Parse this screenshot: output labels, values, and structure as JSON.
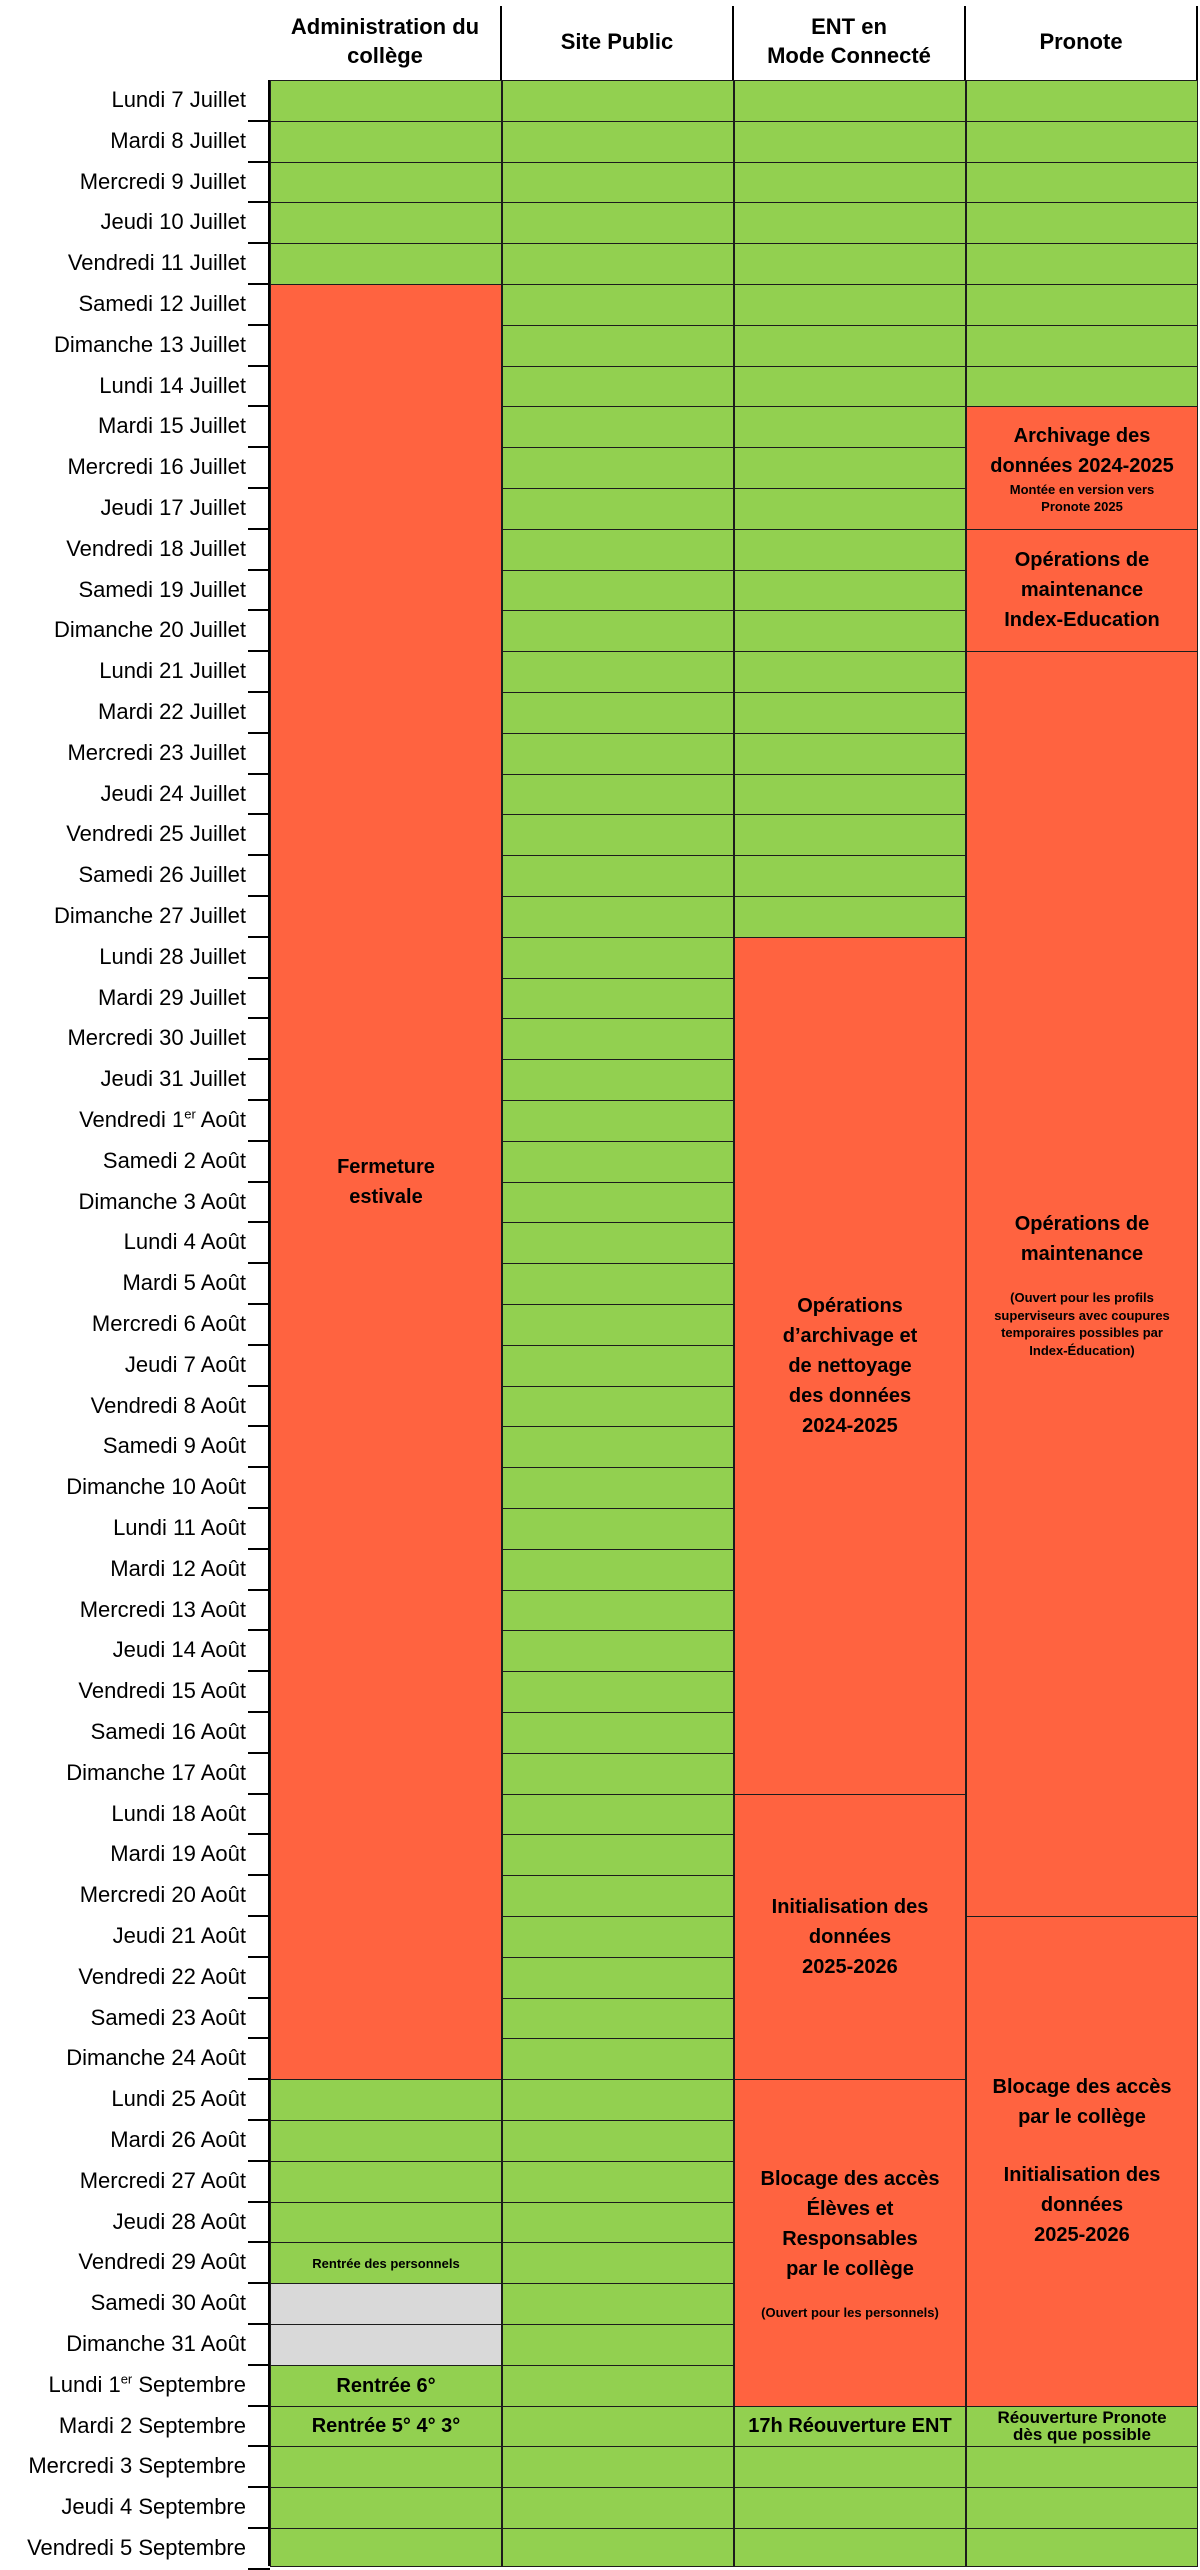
{
  "headers": {
    "admin": "Administration du\ncollège",
    "site": "Site Public",
    "ent": "ENT en\nMode Connecté",
    "pronote": "Pronote"
  },
  "days": [
    {
      "text": "Lundi 7 Juillet"
    },
    {
      "text": "Mardi 8 Juillet"
    },
    {
      "text": "Mercredi 9 Juillet"
    },
    {
      "text": "Jeudi 10 Juillet"
    },
    {
      "text": "Vendredi 11 Juillet"
    },
    {
      "text": "Samedi 12 Juillet"
    },
    {
      "text": "Dimanche 13 Juillet"
    },
    {
      "text": "Lundi 14 Juillet"
    },
    {
      "text": "Mardi 15 Juillet"
    },
    {
      "text": "Mercredi 16 Juillet"
    },
    {
      "text": "Jeudi 17 Juillet"
    },
    {
      "text": "Vendredi 18 Juillet"
    },
    {
      "text": "Samedi 19 Juillet"
    },
    {
      "text": "Dimanche 20 Juillet"
    },
    {
      "text": "Lundi 21 Juillet"
    },
    {
      "text": "Mardi 22 Juillet"
    },
    {
      "text": "Mercredi 23 Juillet"
    },
    {
      "text": "Jeudi 24 Juillet"
    },
    {
      "text": "Vendredi 25 Juillet"
    },
    {
      "text": "Samedi 26 Juillet"
    },
    {
      "text": "Dimanche 27 Juillet"
    },
    {
      "text": "Lundi 28 Juillet"
    },
    {
      "text": "Mardi 29 Juillet"
    },
    {
      "text": "Mercredi 30 Juillet"
    },
    {
      "text": "Jeudi 31 Juillet"
    },
    {
      "pre": "Vendredi 1",
      "sup": "er",
      "post": " Août"
    },
    {
      "text": "Samedi 2 Août"
    },
    {
      "text": "Dimanche 3 Août"
    },
    {
      "text": "Lundi 4 Août"
    },
    {
      "text": "Mardi 5 Août"
    },
    {
      "text": "Mercredi 6 Août"
    },
    {
      "text": "Jeudi 7 Août"
    },
    {
      "text": "Vendredi 8 Août"
    },
    {
      "text": "Samedi 9 Août"
    },
    {
      "text": "Dimanche 10 Août"
    },
    {
      "text": "Lundi 11 Août"
    },
    {
      "text": "Mardi 12 Août"
    },
    {
      "text": "Mercredi 13 Août"
    },
    {
      "text": "Jeudi 14 Août"
    },
    {
      "text": "Vendredi 15 Août"
    },
    {
      "text": "Samedi 16 Août"
    },
    {
      "text": "Dimanche 17 Août"
    },
    {
      "text": "Lundi 18 Août"
    },
    {
      "text": "Mardi 19 Août"
    },
    {
      "text": "Mercredi 20 Août"
    },
    {
      "text": "Jeudi 21 Août"
    },
    {
      "text": "Vendredi 22 Août"
    },
    {
      "text": "Samedi 23 Août"
    },
    {
      "text": "Dimanche 24 Août"
    },
    {
      "text": "Lundi 25 Août"
    },
    {
      "text": "Mardi 26 Août"
    },
    {
      "text": "Mercredi 27 Août"
    },
    {
      "text": "Jeudi 28 Août"
    },
    {
      "text": "Vendredi 29 Août"
    },
    {
      "text": "Samedi 30 Août"
    },
    {
      "text": "Dimanche 31 Août"
    },
    {
      "pre": "Lundi 1",
      "sup": "er",
      "post": " Septembre"
    },
    {
      "text": "Mardi 2 Septembre"
    },
    {
      "text": "Mercredi 3 Septembre"
    },
    {
      "text": "Jeudi 4 Septembre"
    },
    {
      "text": "Vendredi 5 Septembre"
    }
  ],
  "columns": [
    {
      "key": "admin",
      "blocks": [
        {
          "from": 1,
          "to": 5,
          "color": "green",
          "split": true
        },
        {
          "from": 6,
          "to": 49,
          "color": "orange",
          "title": "Fermeture\nestivale"
        },
        {
          "from": 50,
          "to": 53,
          "color": "green",
          "split": true
        },
        {
          "from": 54,
          "to": 54,
          "color": "green",
          "small": "Rentrée des personnels"
        },
        {
          "from": 55,
          "to": 56,
          "color": "grey",
          "split": true
        },
        {
          "from": 57,
          "to": 57,
          "color": "green",
          "title": "Rentrée 6°"
        },
        {
          "from": 58,
          "to": 58,
          "color": "green",
          "title": "Rentrée 5° 4° 3°"
        },
        {
          "from": 59,
          "to": 61,
          "color": "green",
          "split": true
        }
      ]
    },
    {
      "key": "site",
      "blocks": [
        {
          "from": 1,
          "to": 61,
          "color": "green",
          "split": true
        }
      ]
    },
    {
      "key": "ent",
      "blocks": [
        {
          "from": 1,
          "to": 21,
          "color": "green",
          "split": true
        },
        {
          "from": 22,
          "to": 42,
          "color": "orange",
          "title": "Opérations\nd’archivage et\nde nettoyage\ndes données\n2024-2025"
        },
        {
          "from": 43,
          "to": 49,
          "color": "orange",
          "title": "Initialisation des\ndonnées\n2025-2026"
        },
        {
          "from": 50,
          "to": 57,
          "color": "orange",
          "title": "Blocage des accès\nÉlèves et\nResponsables\npar le collège",
          "note": "(Ouvert pour les personnels)"
        },
        {
          "from": 58,
          "to": 58,
          "color": "green",
          "title": "17h Réouverture ENT"
        },
        {
          "from": 59,
          "to": 61,
          "color": "green",
          "split": true
        }
      ]
    },
    {
      "key": "pronote",
      "blocks": [
        {
          "from": 1,
          "to": 8,
          "color": "green",
          "split": true
        },
        {
          "from": 9,
          "to": 11,
          "color": "orange",
          "title": "Archivage des\ndonnées 2024-2025",
          "small": "Montée en version vers\nPronote 2025"
        },
        {
          "from": 12,
          "to": 14,
          "color": "orange",
          "title": "Opérations de\nmaintenance\nIndex-Education"
        },
        {
          "from": 15,
          "to": 45,
          "color": "orange",
          "title": "Opérations de\nmaintenance",
          "note": "(Ouvert pour les profils\nsuperviseurs avec coupures\ntemporaires possibles par\nIndex-Éducation)"
        },
        {
          "from": 46,
          "to": 57,
          "color": "orange",
          "title": "Blocage des accès\npar le collège",
          "title2": "Initialisation des\ndonnées\n2025-2026"
        },
        {
          "from": 58,
          "to": 58,
          "color": "green",
          "title": "Réouverture Pronote\ndès que possible",
          "compact": true
        },
        {
          "from": 59,
          "to": 61,
          "color": "green",
          "split": true
        }
      ]
    }
  ]
}
